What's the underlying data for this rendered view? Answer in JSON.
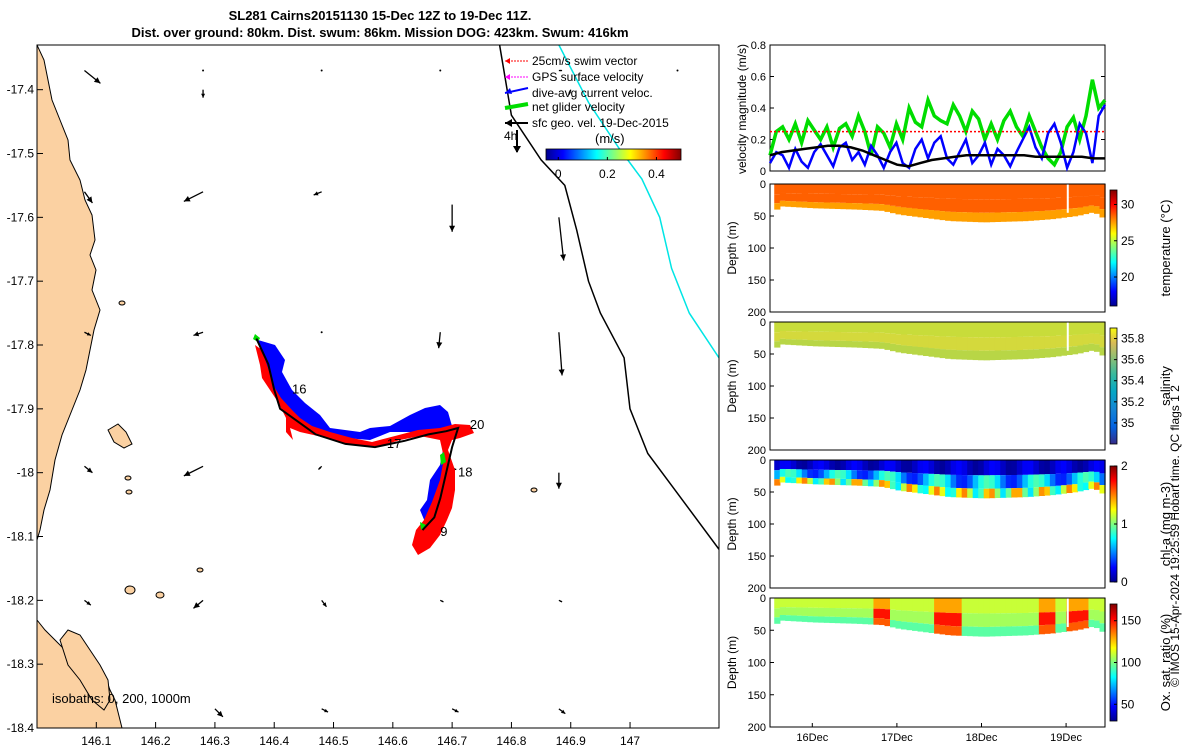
{
  "figure": {
    "title_line1": "SL281 Cairns20151130 15-Dec 12Z to 19-Dec 11Z.",
    "title_line2": "Dist. over ground: 80km. Dist. swum: 86km. Mission DOG: 423km. Swum: 416km",
    "credit": "© IMOS 15-Apr-2024 19:25:59 Hobart time. QC flags 1 2",
    "colors": {
      "land": "#fbd1a2",
      "glider_track": "#000000",
      "swim": "#ff0000",
      "gps": "#ff00ff",
      "dive_avg": "#0000ff",
      "net": "#00dd00",
      "geo": "#000000",
      "isobath_1000": "#00e5e5"
    }
  },
  "chart_data": [
    {
      "type": "map",
      "xlim": [
        146.0,
        147.15
      ],
      "ylim": [
        -18.4,
        -17.33
      ],
      "xticks": [
        146.1,
        146.2,
        146.3,
        146.4,
        146.5,
        146.6,
        146.7,
        146.8,
        146.9,
        147
      ],
      "xtick_labels": [
        "146.1",
        "146.2",
        "146.3",
        "146.4",
        "146.5",
        "146.6",
        "146.7",
        "146.8",
        "146.9",
        "147"
      ],
      "yticks": [
        -17.4,
        -17.5,
        -17.6,
        -17.7,
        -17.8,
        -17.9,
        -18,
        -18.1,
        -18.2,
        -18.3,
        -18.4
      ],
      "ytick_labels": [
        "-17.4",
        "-17.5",
        "-17.6",
        "-17.7",
        "-17.8",
        "-17.9",
        "-18",
        "-18.1",
        "-18.2",
        "-18.3",
        "-18.4"
      ],
      "legend": {
        "location": "top-right",
        "entries": [
          "25cm/s swim vector",
          "GPS surface velocity",
          "dive-avg current veloc.",
          "net glider velocity",
          "sfc geo. vel. 19-Dec-2015"
        ],
        "time_marker": "4h"
      },
      "colorbar": {
        "label": "(m/s)",
        "ticks": [
          0,
          0.2,
          0.4
        ],
        "tick_labels": [
          "0",
          "0.2",
          "0.4"
        ],
        "range": [
          -0.05,
          0.5
        ]
      },
      "isobaths_label": "isobaths: 0, 200, 1000m",
      "day_labels": [
        {
          "text": "16",
          "lon": 146.43,
          "lat": -17.87
        },
        {
          "text": "17",
          "lon": 146.59,
          "lat": -17.955
        },
        {
          "text": "20",
          "lon": 146.73,
          "lat": -17.925
        },
        {
          "text": "18",
          "lon": 146.71,
          "lat": -18.0
        },
        {
          "text": "9",
          "lon": 146.68,
          "lat": -18.093
        }
      ],
      "glider_track": [
        [
          146.37,
          -17.79
        ],
        [
          146.39,
          -17.83
        ],
        [
          146.4,
          -17.87
        ],
        [
          146.41,
          -17.9
        ],
        [
          146.44,
          -17.92
        ],
        [
          146.47,
          -17.94
        ],
        [
          146.52,
          -17.955
        ],
        [
          146.57,
          -17.96
        ],
        [
          146.62,
          -17.95
        ],
        [
          146.66,
          -17.94
        ],
        [
          146.69,
          -17.935
        ],
        [
          146.71,
          -17.93
        ],
        [
          146.7,
          -17.96
        ],
        [
          146.69,
          -18.0
        ],
        [
          146.68,
          -18.04
        ],
        [
          146.67,
          -18.07
        ],
        [
          146.65,
          -18.09
        ]
      ],
      "isobath_200": [
        [
          146.78,
          -17.33
        ],
        [
          146.8,
          -17.44
        ],
        [
          146.85,
          -17.51
        ],
        [
          146.89,
          -17.55
        ],
        [
          146.91,
          -17.62
        ],
        [
          146.93,
          -17.7
        ],
        [
          146.95,
          -17.75
        ],
        [
          146.99,
          -17.82
        ],
        [
          147.0,
          -17.9
        ],
        [
          147.03,
          -17.97
        ],
        [
          147.07,
          -18.02
        ],
        [
          147.15,
          -18.12
        ]
      ],
      "isobath_1000": [
        [
          146.88,
          -17.33
        ],
        [
          146.93,
          -17.42
        ],
        [
          146.98,
          -17.49
        ],
        [
          147.02,
          -17.54
        ],
        [
          147.05,
          -17.6
        ],
        [
          147.07,
          -17.68
        ],
        [
          147.1,
          -17.75
        ],
        [
          147.15,
          -17.82
        ]
      ],
      "geo_velocity_arrows": [
        {
          "lon": 146.08,
          "lat": -17.37,
          "u": 0.1,
          "v": -0.08
        },
        {
          "lon": 146.28,
          "lat": -17.37,
          "u": 0.0,
          "v": 0.0
        },
        {
          "lon": 146.48,
          "lat": -17.37,
          "u": 0.0,
          "v": 0.0
        },
        {
          "lon": 146.68,
          "lat": -17.37,
          "u": 0.0,
          "v": 0.0
        },
        {
          "lon": 146.88,
          "lat": -17.37,
          "u": 0.02,
          "v": 0.0
        },
        {
          "lon": 147.08,
          "lat": -17.37,
          "u": 0.0,
          "v": 0.0
        },
        {
          "lon": 146.28,
          "lat": -17.4,
          "u": 0.0,
          "v": -0.05
        },
        {
          "lon": 146.9,
          "lat": -17.4,
          "u": -0.01,
          "v": -0.03
        },
        {
          "lon": 146.08,
          "lat": -17.56,
          "u": 0.05,
          "v": -0.07
        },
        {
          "lon": 146.28,
          "lat": -17.56,
          "u": -0.12,
          "v": -0.06
        },
        {
          "lon": 146.48,
          "lat": -17.56,
          "u": -0.05,
          "v": -0.02
        },
        {
          "lon": 146.7,
          "lat": -17.58,
          "u": 0.0,
          "v": -0.17
        },
        {
          "lon": 146.88,
          "lat": -17.6,
          "u": 0.03,
          "v": -0.27
        },
        {
          "lon": 146.08,
          "lat": -17.78,
          "u": 0.04,
          "v": -0.02
        },
        {
          "lon": 146.28,
          "lat": -17.78,
          "u": -0.06,
          "v": -0.02
        },
        {
          "lon": 146.48,
          "lat": -17.78,
          "u": 0.0,
          "v": 0.0
        },
        {
          "lon": 146.68,
          "lat": -17.78,
          "u": -0.01,
          "v": -0.1
        },
        {
          "lon": 146.88,
          "lat": -17.78,
          "u": 0.02,
          "v": -0.27
        },
        {
          "lon": 146.08,
          "lat": -17.99,
          "u": 0.05,
          "v": -0.04
        },
        {
          "lon": 146.28,
          "lat": -17.99,
          "u": -0.12,
          "v": -0.06
        },
        {
          "lon": 146.48,
          "lat": -17.99,
          "u": -0.02,
          "v": -0.02
        },
        {
          "lon": 146.68,
          "lat": -17.99,
          "u": 0.1,
          "v": -0.02
        },
        {
          "lon": 146.88,
          "lat": -18.0,
          "u": 0.0,
          "v": -0.1
        },
        {
          "lon": 146.08,
          "lat": -18.2,
          "u": 0.04,
          "v": -0.03
        },
        {
          "lon": 146.28,
          "lat": -18.2,
          "u": -0.06,
          "v": -0.05
        },
        {
          "lon": 146.48,
          "lat": -18.2,
          "u": 0.03,
          "v": -0.04
        },
        {
          "lon": 146.68,
          "lat": -18.2,
          "u": 0.02,
          "v": -0.01
        },
        {
          "lon": 146.88,
          "lat": -18.2,
          "u": 0.02,
          "v": -0.01
        },
        {
          "lon": 146.3,
          "lat": -18.37,
          "u": 0.05,
          "v": -0.05
        },
        {
          "lon": 146.48,
          "lat": -18.37,
          "u": 0.04,
          "v": -0.02
        },
        {
          "lon": 146.7,
          "lat": -18.37,
          "u": 0.04,
          "v": -0.02
        },
        {
          "lon": 146.88,
          "lat": -18.37,
          "u": 0.04,
          "v": -0.03
        }
      ]
    },
    {
      "type": "line",
      "ylabel": "velocity magnitude (m/s)",
      "ylim": [
        0,
        0.8
      ],
      "yticks": [
        0,
        0.2,
        0.4,
        0.6,
        0.8
      ],
      "ytick_labels": [
        "0",
        "0.2",
        "0.4",
        "0.6",
        "0.8"
      ],
      "xlim": [
        15.5,
        19.46
      ],
      "series": [
        {
          "name": "net glider velocity",
          "color": "#00dd00",
          "values": [
            0.1,
            0.25,
            0.28,
            0.2,
            0.3,
            0.18,
            0.32,
            0.26,
            0.2,
            0.28,
            0.15,
            0.27,
            0.3,
            0.22,
            0.35,
            0.25,
            0.1,
            0.28,
            0.24,
            0.15,
            0.3,
            0.2,
            0.4,
            0.31,
            0.28,
            0.45,
            0.35,
            0.32,
            0.3,
            0.42,
            0.35,
            0.25,
            0.38,
            0.33,
            0.2,
            0.3,
            0.2,
            0.32,
            0.38,
            0.28,
            0.22,
            0.35,
            0.25,
            0.15,
            0.08,
            0.04,
            0.12,
            0.28,
            0.34,
            0.2,
            0.35,
            0.58,
            0.4,
            0.45
          ]
        },
        {
          "name": "dive-avg current veloc.",
          "color": "#0000ff",
          "values": [
            0.05,
            0.12,
            0.1,
            0.02,
            0.14,
            0.06,
            0.02,
            0.12,
            0.17,
            0.1,
            0.03,
            0.15,
            0.18,
            0.07,
            0.12,
            0.04,
            0.16,
            0.1,
            0.02,
            0.12,
            0.18,
            0.05,
            0.02,
            0.14,
            0.2,
            0.08,
            0.18,
            0.22,
            0.08,
            0.04,
            0.12,
            0.2,
            0.05,
            0.1,
            0.18,
            0.04,
            0.14,
            0.1,
            0.03,
            0.12,
            0.2,
            0.28,
            0.15,
            0.08,
            0.24,
            0.3,
            0.18,
            0.02,
            0.12,
            0.3,
            0.24,
            0.05,
            0.35,
            0.42
          ]
        },
        {
          "name": "sfc geo. vel.",
          "color": "#000000",
          "values": [
            0.1,
            0.12,
            0.13,
            0.14,
            0.15,
            0.16,
            0.16,
            0.15,
            0.13,
            0.1,
            0.07,
            0.04,
            0.03,
            0.05,
            0.07,
            0.08,
            0.09,
            0.1,
            0.1,
            0.1,
            0.1,
            0.1,
            0.1,
            0.09,
            0.09,
            0.09,
            0.09,
            0.09,
            0.08,
            0.08
          ]
        },
        {
          "name": "25cm/s swim vector",
          "color": "#ff0000",
          "values": [
            0.25,
            0.25
          ]
        }
      ]
    },
    {
      "type": "heatmap",
      "variable": "temperature",
      "clabel": "temperature (°C)",
      "cticks": [
        20,
        25,
        30
      ],
      "ctick_labels": [
        "20",
        "25",
        "30"
      ],
      "clim": [
        16,
        32
      ],
      "ylabel": "Depth (m)",
      "ylim": [
        0,
        200
      ],
      "yticks": [
        0,
        50,
        100,
        150,
        200
      ],
      "ytick_labels": [
        "0",
        "50",
        "100",
        "150",
        "200"
      ],
      "profile_depth_m": [
        [
          15.6,
          35
        ],
        [
          16.0,
          38
        ],
        [
          16.5,
          40
        ],
        [
          16.8,
          42
        ],
        [
          17.0,
          48
        ],
        [
          17.3,
          53
        ],
        [
          17.6,
          58
        ],
        [
          18.0,
          60
        ],
        [
          18.5,
          58
        ],
        [
          18.8,
          55
        ],
        [
          19.1,
          50
        ],
        [
          19.3,
          44
        ],
        [
          19.46,
          58
        ]
      ],
      "surface_value": 28.5,
      "deep_value": 30
    },
    {
      "type": "heatmap",
      "variable": "salinity",
      "clabel": "salinity",
      "cticks": [
        35,
        35.2,
        35.4,
        35.6,
        35.8
      ],
      "ctick_labels": [
        "35",
        "35.2",
        "35.4",
        "35.6",
        "35.8"
      ],
      "clim": [
        34.8,
        35.9
      ],
      "ylabel": "Depth (m)",
      "ylim": [
        0,
        200
      ],
      "yticks": [
        0,
        50,
        100,
        150,
        200
      ],
      "ytick_labels": [
        "0",
        "50",
        "100",
        "150",
        "200"
      ],
      "surface_value": 35.65
    },
    {
      "type": "heatmap",
      "variable": "chl-a",
      "clabel": "chl-a (mg m-3)",
      "cticks": [
        0,
        1,
        2
      ],
      "ctick_labels": [
        "0",
        "1",
        "2"
      ],
      "clim": [
        0,
        2
      ],
      "ylabel": "Depth (m)",
      "ylim": [
        0,
        200
      ],
      "yticks": [
        0,
        50,
        100,
        150,
        200
      ],
      "ytick_labels": [
        "0",
        "50",
        "100",
        "150",
        "200"
      ],
      "surface_value": 0.2,
      "deep_value": 1.2
    },
    {
      "type": "heatmap",
      "variable": "oxygen",
      "clabel": "Ox. sat. ratio (%)",
      "cticks": [
        50,
        100,
        150
      ],
      "ctick_labels": [
        "50",
        "100",
        "150"
      ],
      "clim": [
        30,
        170
      ],
      "ylabel": "Depth (m)",
      "ylim": [
        0,
        200
      ],
      "yticks": [
        0,
        50,
        100,
        150,
        200
      ],
      "ytick_labels": [
        "0",
        "50",
        "100",
        "150",
        "200"
      ],
      "xticks": [
        16,
        17,
        18,
        19
      ],
      "xtick_labels": [
        "16Dec",
        "17Dec",
        "18Dec",
        "19Dec"
      ],
      "surface_value": 110
    }
  ]
}
